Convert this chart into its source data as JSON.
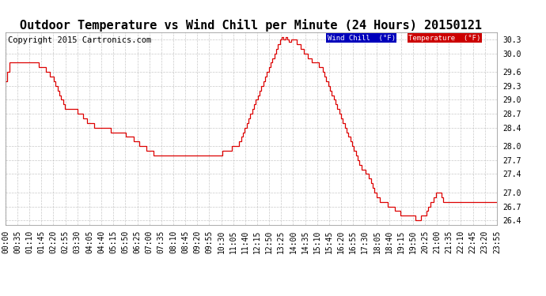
{
  "title": "Outdoor Temperature vs Wind Chill per Minute (24 Hours) 20150121",
  "copyright": "Copyright 2015 Cartronics.com",
  "ylim": [
    26.3,
    30.45
  ],
  "yticks": [
    26.4,
    26.7,
    27.0,
    27.4,
    27.7,
    28.0,
    28.4,
    28.7,
    29.0,
    29.3,
    29.6,
    30.0,
    30.3
  ],
  "bg_color": "#ffffff",
  "grid_color": "#bbbbbb",
  "line_color": "#dd0000",
  "wind_chill_label": "Wind Chill  (°F)",
  "temperature_label": "Temperature  (°F)",
  "wind_chill_box_color": "#0000bb",
  "temperature_box_color": "#cc0000",
  "title_fontsize": 11,
  "copyright_fontsize": 7.5,
  "tick_fontsize": 7,
  "xtick_labels": [
    "00:00",
    "00:35",
    "01:10",
    "01:45",
    "02:20",
    "02:55",
    "03:30",
    "04:05",
    "04:40",
    "05:15",
    "05:50",
    "06:25",
    "07:00",
    "07:35",
    "08:10",
    "08:45",
    "09:20",
    "09:55",
    "10:30",
    "11:05",
    "11:40",
    "12:15",
    "12:50",
    "13:25",
    "14:00",
    "14:35",
    "15:10",
    "15:45",
    "16:20",
    "16:55",
    "17:30",
    "18:05",
    "18:40",
    "19:15",
    "19:50",
    "20:25",
    "21:00",
    "21:35",
    "22:10",
    "22:45",
    "23:20",
    "23:55"
  ],
  "temperature_data": [
    29.4,
    29.6,
    29.8,
    29.8,
    29.8,
    29.8,
    29.8,
    29.8,
    29.8,
    29.8,
    29.8,
    29.8,
    29.8,
    29.8,
    29.8,
    29.8,
    29.8,
    29.8,
    29.7,
    29.7,
    29.7,
    29.7,
    29.6,
    29.6,
    29.5,
    29.5,
    29.4,
    29.3,
    29.2,
    29.1,
    29.0,
    28.9,
    28.8,
    28.8,
    28.8,
    28.8,
    28.8,
    28.8,
    28.8,
    28.7,
    28.7,
    28.7,
    28.6,
    28.6,
    28.5,
    28.5,
    28.5,
    28.5,
    28.4,
    28.4,
    28.4,
    28.4,
    28.4,
    28.4,
    28.4,
    28.4,
    28.4,
    28.3,
    28.3,
    28.3,
    28.3,
    28.3,
    28.3,
    28.3,
    28.3,
    28.2,
    28.2,
    28.2,
    28.2,
    28.1,
    28.1,
    28.1,
    28.0,
    28.0,
    28.0,
    28.0,
    27.9,
    27.9,
    27.9,
    27.9,
    27.8,
    27.8,
    27.8,
    27.8,
    27.8,
    27.8,
    27.8,
    27.8,
    27.8,
    27.8,
    27.8,
    27.8,
    27.8,
    27.8,
    27.8,
    27.8,
    27.8,
    27.8,
    27.8,
    27.8,
    27.8,
    27.8,
    27.8,
    27.8,
    27.8,
    27.8,
    27.8,
    27.8,
    27.8,
    27.8,
    27.8,
    27.8,
    27.8,
    27.8,
    27.8,
    27.8,
    27.8,
    27.9,
    27.9,
    27.9,
    27.9,
    27.9,
    28.0,
    28.0,
    28.0,
    28.0,
    28.1,
    28.2,
    28.3,
    28.4,
    28.5,
    28.6,
    28.7,
    28.8,
    28.9,
    29.0,
    29.1,
    29.2,
    29.3,
    29.4,
    29.5,
    29.6,
    29.7,
    29.8,
    29.9,
    30.0,
    30.1,
    30.2,
    30.3,
    30.35,
    30.3,
    30.35,
    30.3,
    30.25,
    30.3,
    30.3,
    30.3,
    30.2,
    30.2,
    30.1,
    30.1,
    30.0,
    30.0,
    29.9,
    29.9,
    29.8,
    29.8,
    29.8,
    29.8,
    29.7,
    29.7,
    29.6,
    29.5,
    29.4,
    29.3,
    29.2,
    29.1,
    29.0,
    28.9,
    28.8,
    28.7,
    28.6,
    28.5,
    28.4,
    28.3,
    28.2,
    28.1,
    28.0,
    27.9,
    27.8,
    27.7,
    27.6,
    27.5,
    27.5,
    27.4,
    27.4,
    27.3,
    27.2,
    27.1,
    27.0,
    26.9,
    26.9,
    26.8,
    26.8,
    26.8,
    26.8,
    26.7,
    26.7,
    26.7,
    26.7,
    26.6,
    26.6,
    26.6,
    26.5,
    26.5,
    26.5,
    26.5,
    26.5,
    26.5,
    26.5,
    26.5,
    26.4,
    26.4,
    26.4,
    26.5,
    26.5,
    26.5,
    26.6,
    26.7,
    26.8,
    26.8,
    26.9,
    27.0,
    27.0,
    27.0,
    26.9,
    26.8,
    26.8,
    26.8,
    26.8,
    26.8,
    26.8,
    26.8,
    26.8,
    26.8,
    26.8,
    26.8,
    26.8,
    26.8,
    26.8,
    26.8,
    26.8,
    26.8,
    26.8,
    26.8,
    26.8,
    26.8,
    26.8,
    26.8,
    26.8,
    26.8,
    26.8,
    26.8,
    26.8,
    26.8,
    26.8
  ]
}
